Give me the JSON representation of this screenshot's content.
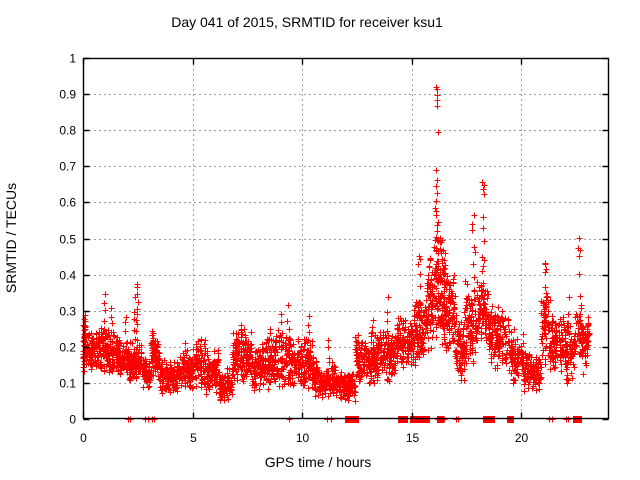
{
  "chart_data": {
    "type": "scatter",
    "title": "Day 041 of 2015, SRMTID for receiver ksu1",
    "xlabel": "GPS time / hours",
    "ylabel": "SRMTID / TECUs",
    "xlim": [
      0,
      24
    ],
    "ylim": [
      0,
      1
    ],
    "xticks": {
      "values": [
        0,
        5,
        10,
        15,
        20
      ],
      "labels": [
        "0",
        "5",
        "10",
        "15",
        "20"
      ]
    },
    "yticks": {
      "values": [
        0,
        0.1,
        0.2,
        0.3,
        0.4,
        0.5,
        0.6,
        0.7,
        0.8,
        0.9,
        1
      ],
      "labels": [
        "0",
        "0.1",
        "0.2",
        "0.3",
        "0.4",
        "0.5",
        "0.6",
        "0.7",
        "0.8",
        "0.9",
        "1"
      ]
    },
    "grid": true,
    "grid_color": "#9b9b9b",
    "border_color": "#000000",
    "marker": {
      "shape": "plus",
      "color": "#ff0000",
      "size": 6
    },
    "seed": 41,
    "point_cloud": {
      "segments_format": [
        "t_start",
        "t_end",
        "y_min",
        "y_max",
        "points_per_hour"
      ],
      "segments": [
        [
          0.0,
          0.12,
          0.13,
          0.3,
          320
        ],
        [
          0.12,
          0.7,
          0.12,
          0.25,
          120
        ],
        [
          0.7,
          1.15,
          0.12,
          0.27,
          120
        ],
        [
          1.15,
          1.6,
          0.11,
          0.25,
          120
        ],
        [
          1.6,
          2.2,
          0.1,
          0.22,
          115
        ],
        [
          2.2,
          2.7,
          0.1,
          0.21,
          120
        ],
        [
          2.7,
          3.1,
          0.08,
          0.17,
          110
        ],
        [
          3.1,
          3.5,
          0.11,
          0.24,
          120
        ],
        [
          3.5,
          4.4,
          0.07,
          0.17,
          115
        ],
        [
          4.4,
          5.0,
          0.08,
          0.2,
          115
        ],
        [
          5.0,
          5.6,
          0.08,
          0.22,
          115
        ],
        [
          5.6,
          6.2,
          0.07,
          0.19,
          115
        ],
        [
          6.2,
          6.8,
          0.04,
          0.14,
          110
        ],
        [
          6.8,
          7.7,
          0.09,
          0.25,
          125
        ],
        [
          7.7,
          8.3,
          0.08,
          0.21,
          115
        ],
        [
          8.3,
          9.5,
          0.08,
          0.25,
          120
        ],
        [
          9.5,
          10.5,
          0.08,
          0.23,
          115
        ],
        [
          10.5,
          11.5,
          0.06,
          0.16,
          110
        ],
        [
          11.5,
          12.4,
          0.05,
          0.13,
          110
        ],
        [
          12.4,
          13.4,
          0.1,
          0.24,
          120
        ],
        [
          13.4,
          14.3,
          0.1,
          0.26,
          120
        ],
        [
          14.3,
          15.1,
          0.13,
          0.3,
          120
        ],
        [
          15.1,
          15.7,
          0.14,
          0.34,
          125
        ],
        [
          15.7,
          16.0,
          0.18,
          0.46,
          160
        ],
        [
          16.0,
          16.5,
          0.2,
          0.52,
          180
        ],
        [
          16.5,
          17.0,
          0.16,
          0.42,
          160
        ],
        [
          17.0,
          17.4,
          0.1,
          0.3,
          150
        ],
        [
          17.4,
          18.0,
          0.14,
          0.4,
          130
        ],
        [
          18.0,
          18.5,
          0.2,
          0.4,
          130
        ],
        [
          18.5,
          19.4,
          0.14,
          0.32,
          120
        ],
        [
          19.4,
          20.1,
          0.1,
          0.25,
          110
        ],
        [
          20.1,
          20.9,
          0.07,
          0.2,
          105
        ],
        [
          20.9,
          21.3,
          0.14,
          0.38,
          120
        ],
        [
          21.3,
          22.0,
          0.12,
          0.3,
          120
        ],
        [
          22.0,
          22.45,
          0.1,
          0.28,
          115
        ],
        [
          22.45,
          22.8,
          0.14,
          0.35,
          120
        ],
        [
          22.8,
          23.1,
          0.12,
          0.3,
          115
        ]
      ],
      "spikes_format": [
        "t",
        "y_min",
        "y_max",
        "n_points"
      ],
      "spikes": [
        [
          1.0,
          0.2,
          0.345,
          7
        ],
        [
          1.3,
          0.19,
          0.305,
          6
        ],
        [
          1.95,
          0.17,
          0.285,
          6
        ],
        [
          2.35,
          0.15,
          0.33,
          8
        ],
        [
          2.45,
          0.17,
          0.38,
          13
        ],
        [
          3.2,
          0.13,
          0.25,
          8
        ],
        [
          4.7,
          0.13,
          0.215,
          5
        ],
        [
          5.35,
          0.14,
          0.225,
          5
        ],
        [
          7.25,
          0.12,
          0.26,
          7
        ],
        [
          9.05,
          0.17,
          0.295,
          6
        ],
        [
          9.35,
          0.18,
          0.31,
          5
        ],
        [
          10.3,
          0.15,
          0.285,
          7
        ],
        [
          11.2,
          0.13,
          0.22,
          5
        ],
        [
          13.2,
          0.17,
          0.28,
          6
        ],
        [
          13.9,
          0.19,
          0.33,
          6
        ],
        [
          15.35,
          0.28,
          0.45,
          5
        ],
        [
          16.15,
          0.28,
          0.57,
          12
        ],
        [
          16.4,
          0.28,
          0.5,
          8
        ],
        [
          17.8,
          0.35,
          0.56,
          6
        ],
        [
          21.1,
          0.22,
          0.43,
          8
        ],
        [
          22.15,
          0.2,
          0.33,
          5
        ]
      ],
      "outlier_points": [
        [
          16.12,
          0.92
        ],
        [
          16.17,
          0.913
        ],
        [
          16.14,
          0.897
        ],
        [
          16.15,
          0.885
        ],
        [
          16.13,
          0.868
        ],
        [
          16.2,
          0.795
        ],
        [
          16.1,
          0.69
        ],
        [
          16.14,
          0.663
        ],
        [
          16.11,
          0.645
        ],
        [
          16.16,
          0.625
        ],
        [
          16.1,
          0.603
        ],
        [
          16.07,
          0.585
        ],
        [
          16.12,
          0.566
        ],
        [
          16.18,
          0.545
        ],
        [
          16.11,
          0.505
        ],
        [
          16.15,
          0.495
        ],
        [
          18.22,
          0.657
        ],
        [
          18.28,
          0.648
        ],
        [
          18.24,
          0.636
        ],
        [
          18.31,
          0.624
        ],
        [
          18.26,
          0.56
        ],
        [
          18.25,
          0.528
        ],
        [
          18.28,
          0.494
        ],
        [
          18.2,
          0.45
        ],
        [
          18.3,
          0.44
        ],
        [
          18.25,
          0.425
        ],
        [
          18.22,
          0.41
        ],
        [
          17.9,
          0.462
        ],
        [
          17.77,
          0.54
        ],
        [
          15.32,
          0.452
        ],
        [
          15.28,
          0.43
        ],
        [
          22.62,
          0.502
        ],
        [
          22.59,
          0.475
        ],
        [
          22.66,
          0.468
        ],
        [
          22.61,
          0.452
        ],
        [
          22.63,
          0.401
        ],
        [
          21.08,
          0.43
        ],
        [
          21.12,
          0.415
        ]
      ],
      "zero_value_marks_hours": [
        2.05,
        2.15,
        2.85,
        2.95,
        3.15,
        3.25,
        9.4,
        11.15,
        11.3,
        16.2,
        16.45,
        17.0,
        17.1,
        21.25,
        21.4,
        22.05,
        22.15
      ],
      "zero_value_clusters_hours": [
        12.1,
        12.4,
        14.5,
        14.65,
        15.05,
        15.2,
        15.35,
        15.5,
        15.65,
        16.3,
        18.4,
        18.6,
        19.5,
        22.5,
        22.6
      ]
    }
  }
}
